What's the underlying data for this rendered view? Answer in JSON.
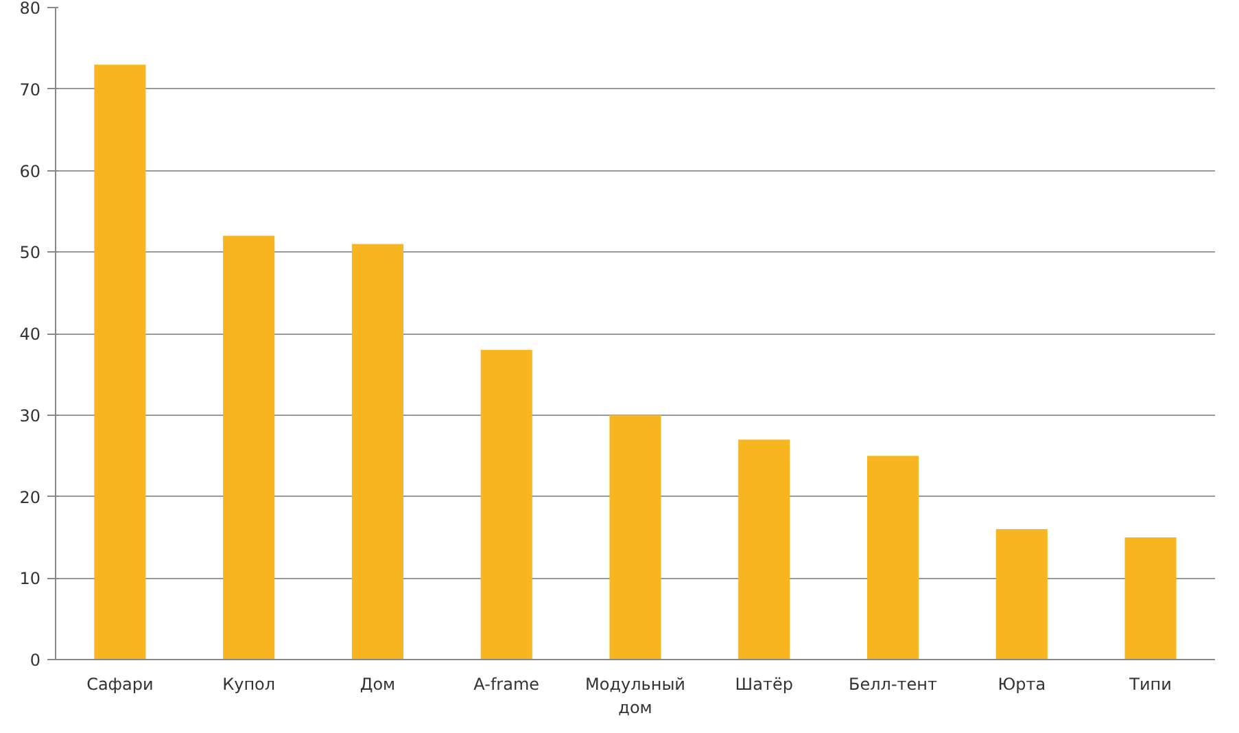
{
  "chart_data": {
    "type": "bar",
    "categories": [
      "Сафари",
      "Купол",
      "Дом",
      "A-frame",
      "Модульный дом",
      "Шатёр",
      "Белл-тент",
      "Юрта",
      "Типи"
    ],
    "values": [
      73,
      52,
      51,
      38,
      30,
      27,
      25,
      16,
      15
    ],
    "color": "#f7b521",
    "ylim": [
      0,
      80
    ],
    "yticks": [
      0,
      10,
      20,
      30,
      40,
      50,
      60,
      70,
      80
    ],
    "grid": "y"
  }
}
